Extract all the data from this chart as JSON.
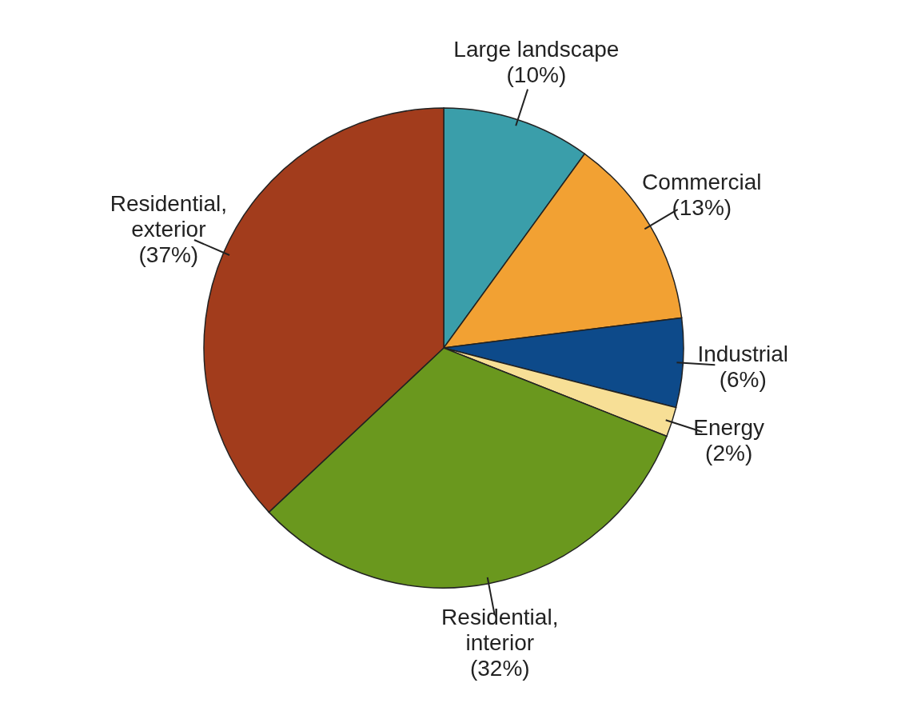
{
  "chart_data": {
    "type": "pie",
    "categories": [
      "Large landscape",
      "Commercial",
      "Industrial",
      "Energy",
      "Residential, interior",
      "Residential, exterior"
    ],
    "values": [
      10,
      13,
      6,
      2,
      32,
      37
    ],
    "colors": [
      "#3a9eaa",
      "#f2a133",
      "#0d4a8a",
      "#f7df96",
      "#6a981e",
      "#a23c1c"
    ],
    "value_labels": [
      "(10%)",
      "(13%)",
      "(6%)",
      "(2%)",
      "(32%)",
      "(37%)"
    ]
  }
}
